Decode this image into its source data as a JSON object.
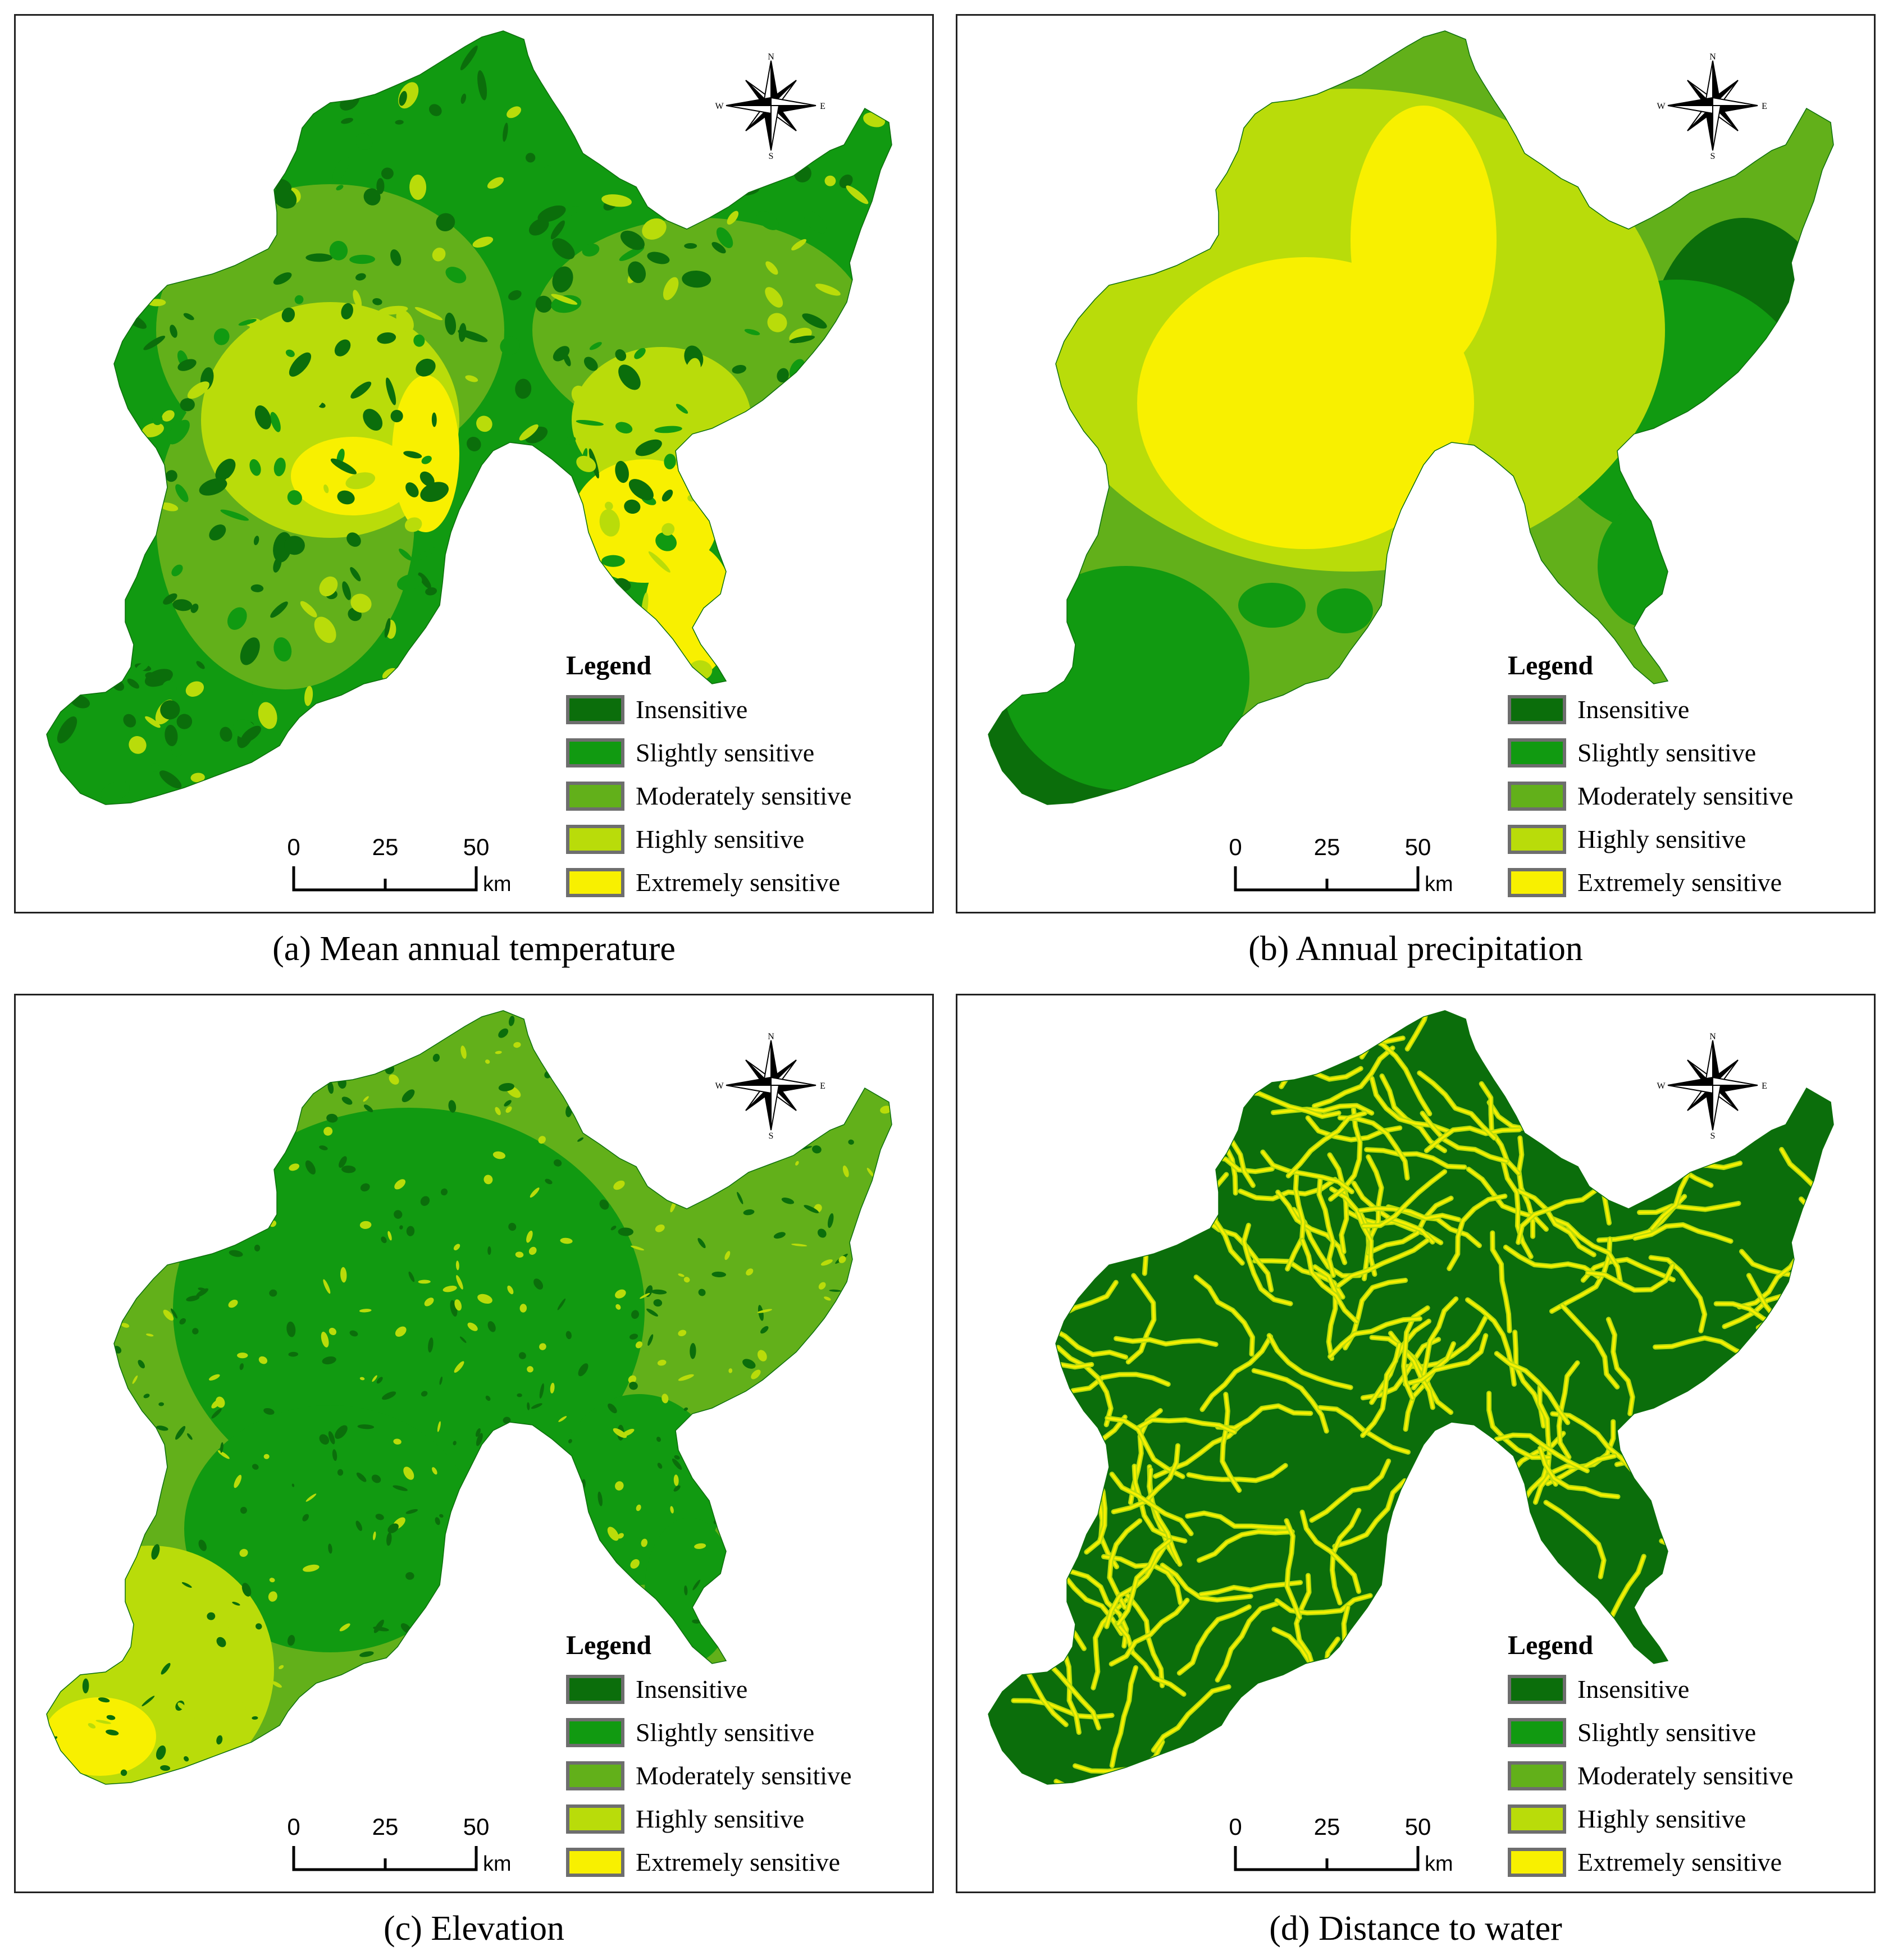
{
  "legend": {
    "title": "Legend",
    "classes": [
      {
        "label": "Insensitive",
        "color": "#0b6e0b"
      },
      {
        "label": "Slightly sensitive",
        "color": "#119a11"
      },
      {
        "label": "Moderately sensitive",
        "color": "#62b01a"
      },
      {
        "label": "Highly sensitive",
        "color": "#b9dc0a"
      },
      {
        "label": "Extremely sensitive",
        "color": "#f8f000"
      }
    ]
  },
  "scalebar": {
    "ticks": [
      "0",
      "25",
      "50"
    ],
    "unit": "km"
  },
  "compass": {
    "n": "N",
    "s": "S",
    "e": "E",
    "w": "W"
  },
  "panels": [
    {
      "caption": "(a) Mean annual temperature"
    },
    {
      "caption": "(b) Annual precipitation"
    },
    {
      "caption": "(c) Elevation"
    },
    {
      "caption": "(d) Distance to water"
    }
  ]
}
